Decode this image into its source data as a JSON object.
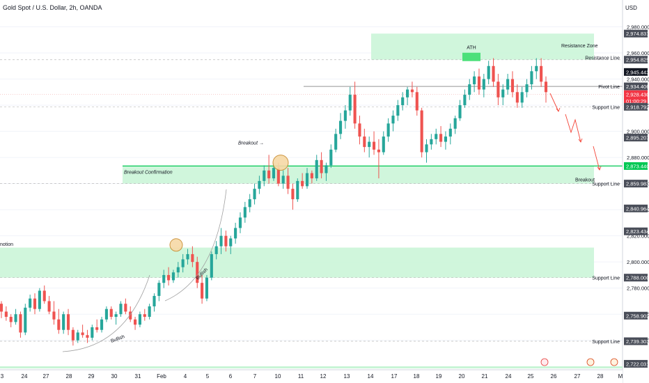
{
  "header": {
    "title": "Gold Spot / U.S. Dollar, 2h, OANDA",
    "currency": "USD"
  },
  "colors": {
    "up": "#26a69a",
    "down": "#ef5350",
    "zone": "#c8f5d6",
    "breakout_line": "#00c853",
    "arrow": "#f44336"
  },
  "chart_data": {
    "type": "candlestick",
    "ylim": [
      2718,
      2992
    ],
    "y_ticks": [
      2980,
      2960,
      2940,
      2920,
      2900,
      2880,
      2860,
      2840,
      2820,
      2800,
      2780,
      2760,
      2740
    ],
    "x_ticks": [
      "3",
      "24",
      "27",
      "28",
      "29",
      "30",
      "31",
      "Feb",
      "4",
      "5",
      "6",
      "7",
      "10",
      "11",
      "12",
      "13",
      "14",
      "17",
      "18",
      "19",
      "20",
      "21",
      "24",
      "25",
      "26",
      "27",
      "28",
      "M"
    ],
    "price_tags": [
      {
        "label": "2,974.831",
        "value": 2974.831,
        "style": "dark"
      },
      {
        "label": "2,954.825",
        "value": 2954.825,
        "style": "dark"
      },
      {
        "label": "2,945.443",
        "value": 2945.443,
        "style": "black"
      },
      {
        "label": "2,934.406",
        "value": 2934.406,
        "style": "dark"
      },
      {
        "label": "2,928.430",
        "value": 2928.43,
        "style": "red"
      },
      {
        "label": "01:00:29",
        "value": 2923.2,
        "style": "red"
      },
      {
        "label": "2,918.792",
        "value": 2918.792,
        "style": "dark"
      },
      {
        "label": "2,895.207",
        "value": 2895.207,
        "style": "dark"
      },
      {
        "label": "2,873.440",
        "value": 2873.44,
        "style": "green"
      },
      {
        "label": "2,859.983",
        "value": 2859.983,
        "style": "dark"
      },
      {
        "label": "2,840.964",
        "value": 2840.964,
        "style": "dark"
      },
      {
        "label": "2,823.434",
        "value": 2823.434,
        "style": "dark"
      },
      {
        "label": "2,788.000",
        "value": 2788.0,
        "style": "dark"
      },
      {
        "label": "2,758.903",
        "value": 2758.903,
        "style": "dark"
      },
      {
        "label": "2,739.303",
        "value": 2739.303,
        "style": "dark"
      },
      {
        "label": "2,722.031",
        "value": 2722.031,
        "style": "dark"
      }
    ],
    "zones": [
      {
        "name": "Resistance Zone",
        "from": 2954.825,
        "to": 2974.831
      },
      {
        "name": "Breakout",
        "from": 2859.983,
        "to": 2873.44
      },
      {
        "name": "",
        "from": 2788.0,
        "to": 2811.0
      }
    ],
    "lines": [
      {
        "name": "Resistance Line",
        "value": 2954.825
      },
      {
        "name": "Pivot Line",
        "value": 2934.406
      },
      {
        "name": "Support Line",
        "value": 2918.792
      },
      {
        "name": "Support Line",
        "value": 2859.983
      },
      {
        "name": "Support Line",
        "value": 2788.0
      },
      {
        "name": "Support Line",
        "value": 2739.303
      }
    ],
    "annotations": {
      "ath": "ATH",
      "breakout": "Breakout",
      "breakout_confirmation": "Breakout Confirmation",
      "left_cut": "notion",
      "curve1": "Bullish",
      "curve2": "Bullish"
    },
    "ohlc": [
      [
        2768,
        2770,
        2757,
        2762
      ],
      [
        2762,
        2766,
        2755,
        2758
      ],
      [
        2758,
        2760,
        2750,
        2754
      ],
      [
        2754,
        2764,
        2752,
        2760
      ],
      [
        2760,
        2762,
        2742,
        2746
      ],
      [
        2746,
        2768,
        2744,
        2765
      ],
      [
        2765,
        2775,
        2762,
        2772
      ],
      [
        2772,
        2776,
        2760,
        2764
      ],
      [
        2764,
        2780,
        2762,
        2778
      ],
      [
        2778,
        2782,
        2768,
        2770
      ],
      [
        2770,
        2774,
        2760,
        2762
      ],
      [
        2762,
        2770,
        2752,
        2756
      ],
      [
        2756,
        2764,
        2745,
        2748
      ],
      [
        2748,
        2762,
        2745,
        2760
      ],
      [
        2760,
        2764,
        2744,
        2748
      ],
      [
        2748,
        2750,
        2736,
        2740
      ],
      [
        2740,
        2748,
        2738,
        2746
      ],
      [
        2746,
        2752,
        2742,
        2744
      ],
      [
        2744,
        2748,
        2738,
        2742
      ],
      [
        2742,
        2752,
        2740,
        2750
      ],
      [
        2750,
        2756,
        2746,
        2748
      ],
      [
        2748,
        2758,
        2746,
        2756
      ],
      [
        2756,
        2766,
        2754,
        2764
      ],
      [
        2764,
        2766,
        2756,
        2758
      ],
      [
        2758,
        2762,
        2752,
        2760
      ],
      [
        2760,
        2770,
        2758,
        2768
      ],
      [
        2768,
        2772,
        2760,
        2762
      ],
      [
        2762,
        2766,
        2754,
        2756
      ],
      [
        2756,
        2758,
        2748,
        2752
      ],
      [
        2752,
        2762,
        2750,
        2760
      ],
      [
        2760,
        2764,
        2755,
        2758
      ],
      [
        2758,
        2768,
        2756,
        2766
      ],
      [
        2766,
        2776,
        2762,
        2774
      ],
      [
        2774,
        2786,
        2770,
        2784
      ],
      [
        2784,
        2794,
        2780,
        2790
      ],
      [
        2790,
        2796,
        2782,
        2786
      ],
      [
        2786,
        2794,
        2784,
        2792
      ],
      [
        2792,
        2800,
        2788,
        2796
      ],
      [
        2796,
        2806,
        2792,
        2802
      ],
      [
        2802,
        2810,
        2798,
        2806
      ],
      [
        2806,
        2812,
        2796,
        2800
      ],
      [
        2800,
        2804,
        2780,
        2784
      ],
      [
        2784,
        2790,
        2768,
        2772
      ],
      [
        2772,
        2790,
        2770,
        2788
      ],
      [
        2788,
        2808,
        2786,
        2806
      ],
      [
        2806,
        2816,
        2802,
        2812
      ],
      [
        2812,
        2826,
        2806,
        2820
      ],
      [
        2820,
        2824,
        2808,
        2812
      ],
      [
        2812,
        2820,
        2806,
        2818
      ],
      [
        2818,
        2830,
        2814,
        2826
      ],
      [
        2826,
        2838,
        2822,
        2834
      ],
      [
        2834,
        2846,
        2830,
        2842
      ],
      [
        2842,
        2852,
        2838,
        2848
      ],
      [
        2848,
        2860,
        2844,
        2856
      ],
      [
        2856,
        2866,
        2852,
        2862
      ],
      [
        2862,
        2874,
        2858,
        2870
      ],
      [
        2870,
        2882,
        2860,
        2864
      ],
      [
        2864,
        2876,
        2862,
        2872
      ],
      [
        2872,
        2876,
        2858,
        2860
      ],
      [
        2860,
        2870,
        2856,
        2866
      ],
      [
        2866,
        2872,
        2852,
        2856
      ],
      [
        2856,
        2860,
        2840,
        2848
      ],
      [
        2848,
        2864,
        2846,
        2862
      ],
      [
        2862,
        2868,
        2856,
        2858
      ],
      [
        2858,
        2872,
        2856,
        2868
      ],
      [
        2868,
        2870,
        2860,
        2864
      ],
      [
        2864,
        2882,
        2862,
        2878
      ],
      [
        2878,
        2884,
        2864,
        2868
      ],
      [
        2868,
        2876,
        2862,
        2874
      ],
      [
        2874,
        2890,
        2872,
        2886
      ],
      [
        2886,
        2902,
        2884,
        2898
      ],
      [
        2898,
        2914,
        2894,
        2908
      ],
      [
        2908,
        2920,
        2902,
        2916
      ],
      [
        2916,
        2934,
        2912,
        2928
      ],
      [
        2928,
        2938,
        2902,
        2906
      ],
      [
        2906,
        2912,
        2890,
        2896
      ],
      [
        2896,
        2902,
        2884,
        2888
      ],
      [
        2888,
        2896,
        2880,
        2892
      ],
      [
        2892,
        2900,
        2882,
        2886
      ],
      [
        2886,
        2894,
        2864,
        2884
      ],
      [
        2884,
        2900,
        2882,
        2896
      ],
      [
        2896,
        2910,
        2892,
        2906
      ],
      [
        2906,
        2916,
        2900,
        2912
      ],
      [
        2912,
        2924,
        2908,
        2920
      ],
      [
        2920,
        2930,
        2916,
        2926
      ],
      [
        2926,
        2934,
        2920,
        2932
      ],
      [
        2932,
        2938,
        2926,
        2930
      ],
      [
        2930,
        2934,
        2912,
        2916
      ],
      [
        2916,
        2918,
        2880,
        2884
      ],
      [
        2884,
        2894,
        2876,
        2890
      ],
      [
        2890,
        2898,
        2886,
        2894
      ],
      [
        2894,
        2902,
        2890,
        2898
      ],
      [
        2898,
        2904,
        2888,
        2892
      ],
      [
        2892,
        2900,
        2886,
        2896
      ],
      [
        2896,
        2906,
        2890,
        2902
      ],
      [
        2902,
        2912,
        2898,
        2910
      ],
      [
        2910,
        2924,
        2908,
        2920
      ],
      [
        2920,
        2932,
        2918,
        2928
      ],
      [
        2928,
        2940,
        2924,
        2936
      ],
      [
        2936,
        2946,
        2930,
        2942
      ],
      [
        2942,
        2948,
        2928,
        2932
      ],
      [
        2932,
        2944,
        2926,
        2940
      ],
      [
        2940,
        2954,
        2936,
        2950
      ],
      [
        2950,
        2956,
        2934,
        2938
      ],
      [
        2938,
        2944,
        2920,
        2926
      ],
      [
        2926,
        2936,
        2920,
        2932
      ],
      [
        2932,
        2944,
        2928,
        2940
      ],
      [
        2940,
        2946,
        2926,
        2930
      ],
      [
        2930,
        2936,
        2918,
        2922
      ],
      [
        2922,
        2934,
        2918,
        2930
      ],
      [
        2930,
        2940,
        2926,
        2936
      ],
      [
        2936,
        2950,
        2932,
        2946
      ],
      [
        2946,
        2956,
        2940,
        2950
      ],
      [
        2950,
        2956,
        2934,
        2938
      ],
      [
        2938,
        2942,
        2922,
        2930
      ]
    ]
  }
}
